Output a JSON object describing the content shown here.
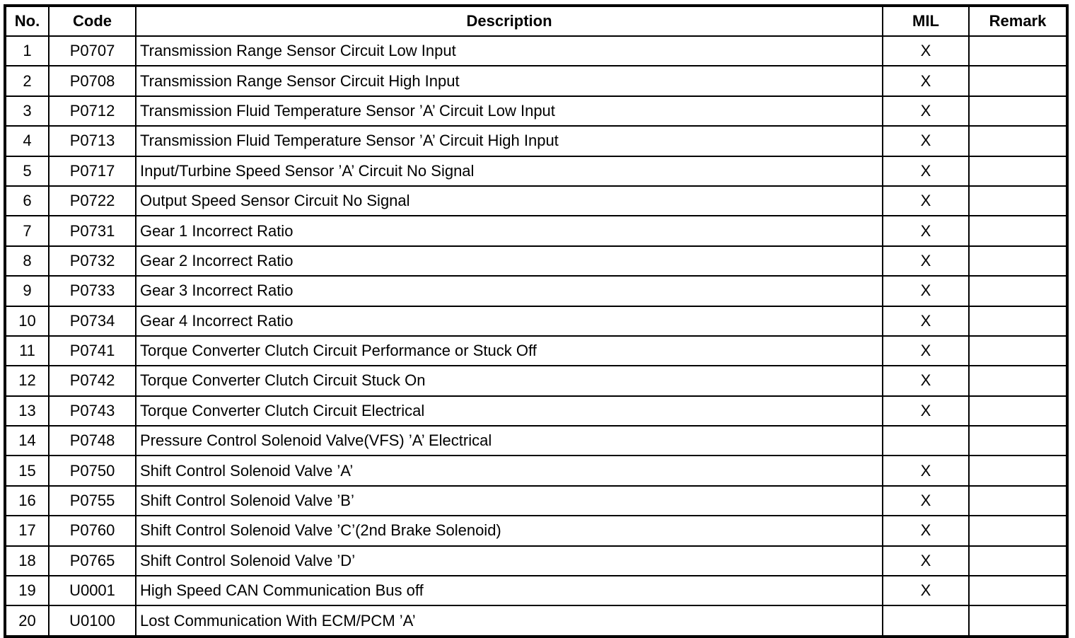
{
  "table": {
    "headers": [
      "No.",
      "Code",
      "Description",
      "MIL",
      "Remark"
    ],
    "rows": [
      {
        "no": "1",
        "code": "P0707",
        "description": "Transmission Range Sensor Circuit Low Input",
        "mil": "X",
        "remark": ""
      },
      {
        "no": "2",
        "code": "P0708",
        "description": "Transmission Range Sensor Circuit High Input",
        "mil": "X",
        "remark": ""
      },
      {
        "no": "3",
        "code": "P0712",
        "description": "Transmission Fluid Temperature Sensor ’A’ Circuit Low Input",
        "mil": "X",
        "remark": ""
      },
      {
        "no": "4",
        "code": "P0713",
        "description": "Transmission Fluid Temperature Sensor ’A’ Circuit High Input",
        "mil": "X",
        "remark": ""
      },
      {
        "no": "5",
        "code": "P0717",
        "description": "Input/Turbine Speed Sensor ’A’ Circuit No Signal",
        "mil": "X",
        "remark": ""
      },
      {
        "no": "6",
        "code": "P0722",
        "description": "Output Speed Sensor Circuit No Signal",
        "mil": "X",
        "remark": ""
      },
      {
        "no": "7",
        "code": "P0731",
        "description": "Gear 1 Incorrect Ratio",
        "mil": "X",
        "remark": ""
      },
      {
        "no": "8",
        "code": "P0732",
        "description": "Gear 2 Incorrect Ratio",
        "mil": "X",
        "remark": ""
      },
      {
        "no": "9",
        "code": "P0733",
        "description": "Gear 3 Incorrect Ratio",
        "mil": "X",
        "remark": ""
      },
      {
        "no": "10",
        "code": "P0734",
        "description": "Gear 4 Incorrect Ratio",
        "mil": "X",
        "remark": ""
      },
      {
        "no": "11",
        "code": "P0741",
        "description": "Torque Converter Clutch Circuit Performance or Stuck Off",
        "mil": "X",
        "remark": ""
      },
      {
        "no": "12",
        "code": "P0742",
        "description": "Torque Converter Clutch Circuit Stuck On",
        "mil": "X",
        "remark": ""
      },
      {
        "no": "13",
        "code": "P0743",
        "description": "Torque Converter Clutch Circuit Electrical",
        "mil": "X",
        "remark": ""
      },
      {
        "no": "14",
        "code": "P0748",
        "description": "Pressure Control Solenoid Valve(VFS) ’A’ Electrical",
        "mil": "",
        "remark": ""
      },
      {
        "no": "15",
        "code": "P0750",
        "description": "Shift Control Solenoid Valve ’A’",
        "mil": "X",
        "remark": ""
      },
      {
        "no": "16",
        "code": "P0755",
        "description": "Shift Control Solenoid Valve ’B’",
        "mil": "X",
        "remark": ""
      },
      {
        "no": "17",
        "code": "P0760",
        "description": "Shift Control Solenoid Valve ’C’(2nd Brake Solenoid)",
        "mil": "X",
        "remark": ""
      },
      {
        "no": "18",
        "code": "P0765",
        "description": "Shift Control Solenoid Valve ’D’",
        "mil": "X",
        "remark": ""
      },
      {
        "no": "19",
        "code": "U0001",
        "description": "High Speed CAN Communication Bus off",
        "mil": "X",
        "remark": ""
      },
      {
        "no": "20",
        "code": "U0100",
        "description": "Lost Communication With ECM/PCM ’A’",
        "mil": "",
        "remark": ""
      }
    ]
  }
}
